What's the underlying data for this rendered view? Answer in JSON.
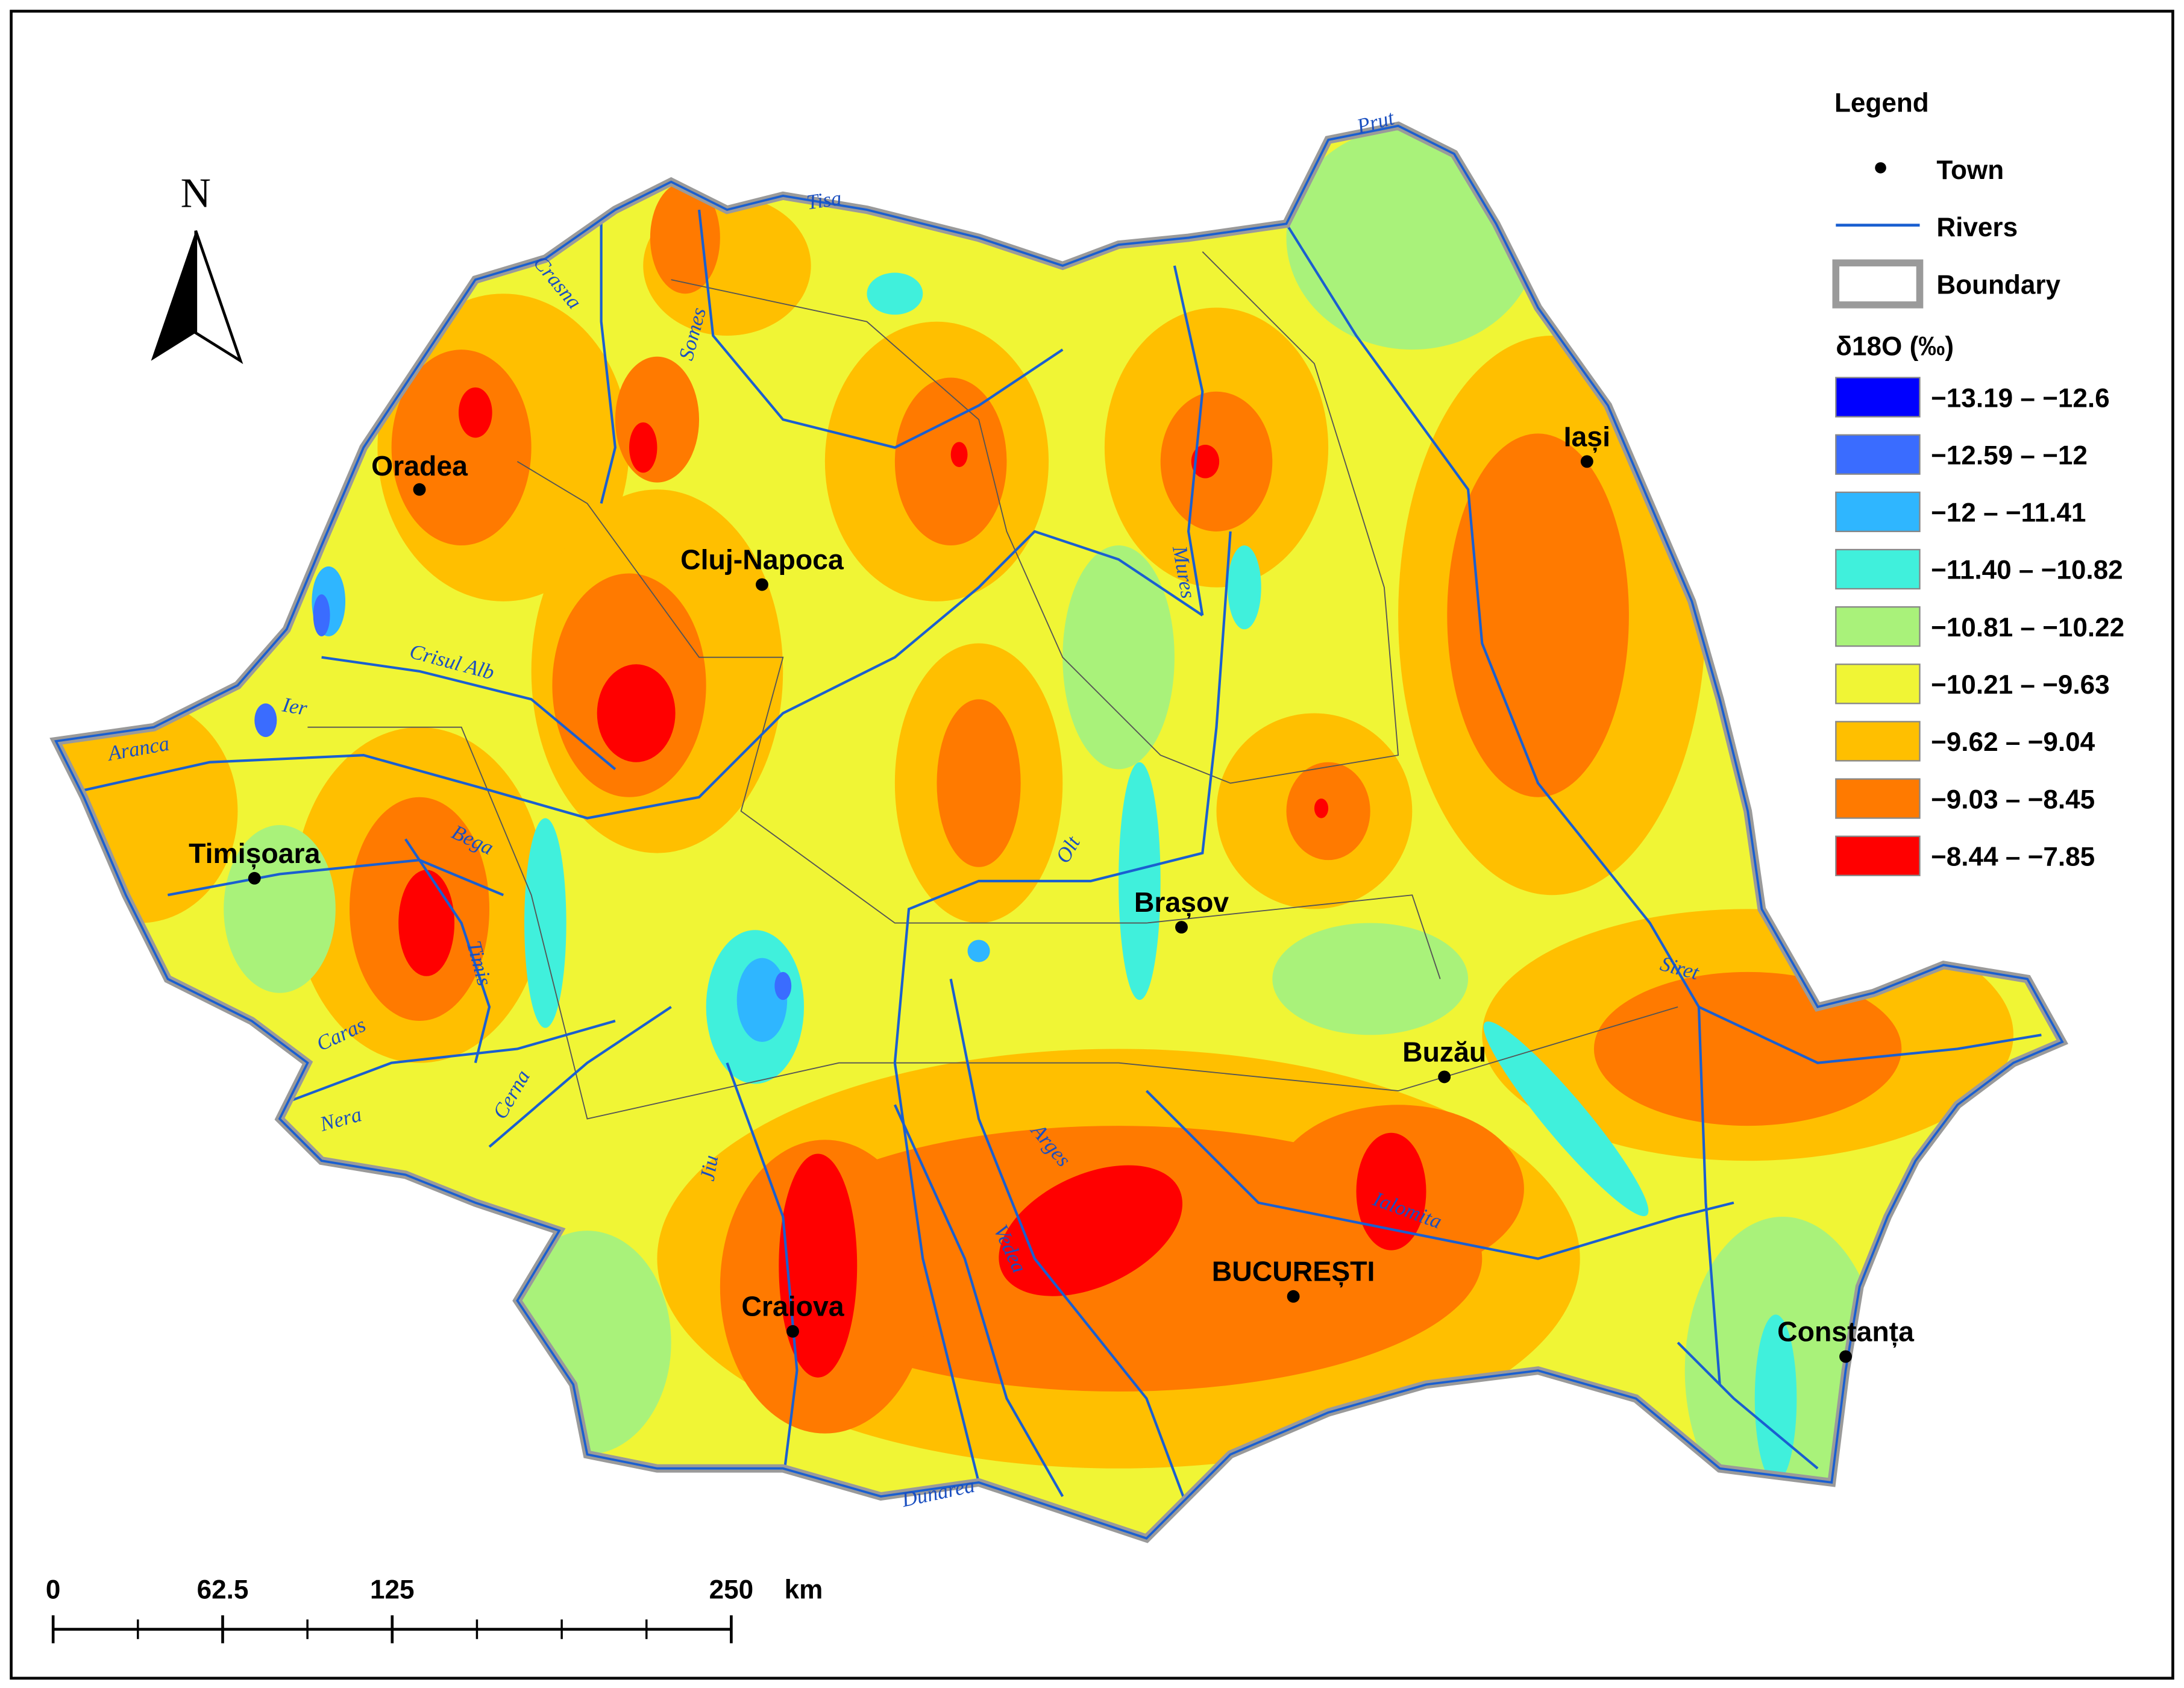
{
  "north": "N",
  "legend": {
    "title": "Legend",
    "town": "Town",
    "rivers": "Rivers",
    "boundary": "Boundary",
    "classes_title": "δ18O (‰)",
    "classes": [
      {
        "label": "−13.19 – −12.6",
        "color": "#0000ff"
      },
      {
        "label": "−12.59 – −12",
        "color": "#3a6cff"
      },
      {
        "label": "−12 – −11.41",
        "color": "#2fb6ff"
      },
      {
        "label": "−11.40 – −10.82",
        "color": "#40f0dc"
      },
      {
        "label": "−10.81 – −10.22",
        "color": "#a9f27a"
      },
      {
        "label": "−10.21 – −9.63",
        "color": "#f0f535"
      },
      {
        "label": "−9.62 – −9.04",
        "color": "#ffbf00"
      },
      {
        "label": "−9.03 – −8.45",
        "color": "#ff7a00"
      },
      {
        "label": "−8.44 – −7.85",
        "color": "#ff0000"
      }
    ]
  },
  "towns": [
    "Oradea",
    "Cluj-Napoca",
    "Iași",
    "Timișoara",
    "Brașov",
    "Buzău",
    "BUCUREȘTI",
    "Craiova",
    "Constanța"
  ],
  "rivers": [
    "Tisa",
    "Prut",
    "Crasna",
    "Somes",
    "Mures",
    "Crisul Alb",
    "Ier",
    "Aranca",
    "Bega",
    "Timis",
    "Caras",
    "Nera",
    "Cerna",
    "Jiu",
    "Olt",
    "Arges",
    "Vedea",
    "Ialomita",
    "Siret",
    "Dunarea"
  ],
  "scale": {
    "ticks": [
      0,
      62.5,
      125,
      250
    ],
    "unit": "km"
  }
}
